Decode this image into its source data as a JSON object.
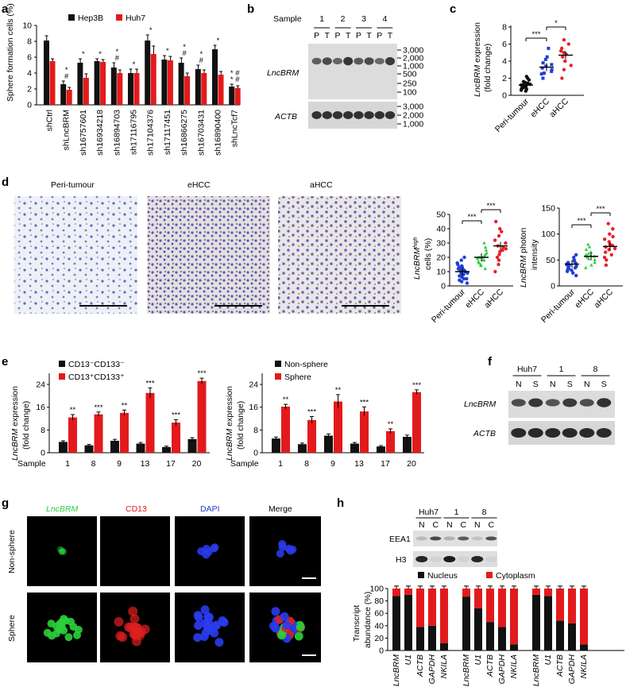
{
  "panels": {
    "a": "a",
    "b": "b",
    "c": "c",
    "d": "d",
    "e": "e",
    "f": "f",
    "g": "g",
    "h": "h"
  },
  "colors": {
    "black": "#111111",
    "red": "#e31a1c",
    "blue": "#1f3fd6",
    "green": "#2ecc40",
    "redDot": "#e8202a"
  },
  "panel_a": {
    "ylabel": "Sphere formation cells (%)",
    "legend": [
      "Hep3B",
      "Huh7"
    ],
    "y_ticks": [
      "0",
      "2",
      "4",
      "6",
      "8",
      "10"
    ],
    "x_labels": [
      "shCtrl",
      "shLncBRM",
      "sh16757601",
      "sh16934218",
      "sh16894703",
      "sh17116795",
      "sh17104376",
      "sh17117451",
      "sh16866275",
      "sh16703431",
      "sh16890400",
      "shLncTcf7"
    ],
    "sig_marks": [
      "*\n#",
      "*\n#",
      "*",
      "*",
      "*\n#",
      "*",
      "*",
      "*",
      "*\n#",
      "*\n#",
      "*",
      "* #\n* #"
    ]
  },
  "panel_b": {
    "sample_label": "Sample",
    "samples": [
      "1",
      "2",
      "3",
      "4"
    ],
    "pt": [
      "P",
      "T",
      "P",
      "T",
      "P",
      "T",
      "P",
      "T"
    ],
    "rows": [
      "LncBRM",
      "ACTB"
    ],
    "ladder_top": [
      "3,000",
      "2,000",
      "1,000",
      "500",
      "250",
      "100"
    ],
    "ladder_bottom": [
      "3,000",
      "2,000",
      "1,000"
    ]
  },
  "panel_c": {
    "ylabel": "LncBRM expression\n(fold change)",
    "y_ticks": [
      "0",
      "2",
      "4",
      "6",
      "8"
    ],
    "groups": [
      "Peri-tumour",
      "eHCC",
      "aHCC"
    ],
    "sig": [
      "***",
      "*"
    ]
  },
  "panel_d": {
    "images": [
      "Peri-tumour",
      "eHCC",
      "aHCC"
    ],
    "chart1_ylabel": "LncBRM high cells (%)",
    "chart1_ticks": [
      "0",
      "10",
      "20",
      "30",
      "40",
      "50"
    ],
    "chart2_ylabel": "LncBRM photon intensity",
    "chart2_ticks": [
      "0",
      "50",
      "100",
      "150"
    ],
    "groups": [
      "Peri-tumour",
      "eHCC",
      "aHCC"
    ],
    "sig": [
      "***",
      "***"
    ]
  },
  "panel_e": {
    "left_legend": [
      "CD13⁻CD133⁻",
      "CD13⁺CD133⁺"
    ],
    "right_legend": [
      "Non-sphere",
      "Sphere"
    ],
    "ylabel": "LncBRM expression\n(fold change)",
    "y_ticks": [
      "0",
      "8",
      "16",
      "24"
    ],
    "sample_label": "Sample",
    "samples": [
      "1",
      "8",
      "9",
      "13",
      "17",
      "20"
    ],
    "left_sig": [
      "**",
      "***",
      "**",
      "***",
      "***",
      "***"
    ],
    "right_sig": [
      "**",
      "***",
      "**",
      "***",
      "**",
      "***"
    ]
  },
  "panel_f": {
    "groups": [
      "Huh7",
      "1",
      "8"
    ],
    "lanes": [
      "N",
      "S",
      "N",
      "S",
      "N",
      "S"
    ],
    "rows": [
      "LncBRM",
      "ACTB"
    ]
  },
  "panel_g": {
    "cols": [
      "LncBRM",
      "CD13",
      "DAPI",
      "Merge"
    ],
    "rows": [
      "Non-sphere",
      "Sphere"
    ]
  },
  "panel_h": {
    "groups": [
      "Huh7",
      "1",
      "8"
    ],
    "lanes": [
      "N",
      "C",
      "N",
      "C",
      "N",
      "C"
    ],
    "rows": [
      "EEA1",
      "H3"
    ],
    "legend": [
      "Nucleus",
      "Cytoplasm"
    ],
    "ylabel": "Transcript abundance (%)",
    "y_ticks": [
      "0",
      "20",
      "40",
      "60",
      "80",
      "100"
    ],
    "x_labels": [
      "LncBRM",
      "U1",
      "ACTB",
      "GAPDH",
      "NKILA"
    ]
  },
  "chart_data": [
    {
      "type": "bar",
      "title": "",
      "ylabel": "Sphere formation cells (%)",
      "ylim": [
        0,
        10
      ],
      "categories": [
        "shCtrl",
        "shLncBRM",
        "sh16757601",
        "sh16934218",
        "sh16894703",
        "sh17116795",
        "sh17104376",
        "sh17117451",
        "sh16866275",
        "sh16703431",
        "sh16890400",
        "shLncTcf7"
      ],
      "series": [
        {
          "name": "Hep3B",
          "values": [
            8.1,
            2.6,
            5.3,
            5.5,
            4.7,
            4.0,
            8.1,
            5.7,
            5.3,
            4.5,
            7.0,
            2.3
          ],
          "errors": [
            0.6,
            0.4,
            0.5,
            0.3,
            0.6,
            0.5,
            0.7,
            0.5,
            0.6,
            0.5,
            0.5,
            0.3
          ]
        },
        {
          "name": "Huh7",
          "values": [
            5.5,
            1.9,
            3.4,
            5.4,
            4.0,
            4.0,
            6.4,
            5.6,
            3.6,
            4.0,
            3.8,
            2.1
          ],
          "errors": [
            0.3,
            0.3,
            0.5,
            0.3,
            0.4,
            0.5,
            1.0,
            0.5,
            0.4,
            0.4,
            0.4,
            0.3
          ]
        }
      ]
    },
    {
      "type": "scatter",
      "ylabel": "LncBRM expression (fold change)",
      "ylim": [
        0,
        8
      ],
      "categories": [
        "Peri-tumour",
        "eHCC",
        "aHCC"
      ],
      "series": [
        {
          "name": "Peri-tumour",
          "values": [
            0.5,
            0.7,
            0.8,
            0.9,
            1.0,
            1.1,
            1.2,
            1.3,
            1.4,
            1.5,
            1.6,
            1.8,
            2.0,
            0.6,
            0.9,
            1.2,
            1.4,
            0.8,
            2.2,
            1.0
          ],
          "mean": 1.2
        },
        {
          "name": "eHCC",
          "values": [
            2.0,
            2.5,
            2.8,
            3.0,
            3.2,
            3.4,
            3.6,
            3.8,
            4.2,
            4.5,
            5.5,
            2.6
          ],
          "mean": 3.3
        },
        {
          "name": "aHCC",
          "values": [
            2.0,
            3.5,
            4.0,
            4.5,
            4.8,
            5.0,
            5.5,
            6.0,
            6.5,
            3.0,
            5.2
          ],
          "mean": 4.7
        }
      ]
    },
    {
      "type": "scatter",
      "ylabel": "LncBRM high cells (%)",
      "ylim": [
        0,
        50
      ],
      "categories": [
        "Peri-tumour",
        "eHCC",
        "aHCC"
      ],
      "series": [
        {
          "name": "Peri-tumour",
          "values": [
            2,
            4,
            5,
            6,
            7,
            8,
            9,
            10,
            11,
            12,
            13,
            14,
            15,
            16,
            18,
            20,
            5,
            9,
            11,
            7,
            13,
            3
          ],
          "mean": 10
        },
        {
          "name": "eHCC",
          "values": [
            12,
            14,
            15,
            16,
            17,
            18,
            19,
            20,
            21,
            22,
            23,
            25,
            27,
            30,
            18,
            20
          ],
          "mean": 20
        },
        {
          "name": "aHCC",
          "values": [
            10,
            15,
            18,
            20,
            22,
            25,
            27,
            28,
            30,
            32,
            35,
            38,
            40,
            45,
            26,
            24
          ],
          "mean": 28
        }
      ]
    },
    {
      "type": "scatter",
      "ylabel": "LncBRM photon intensity",
      "ylim": [
        0,
        150
      ],
      "categories": [
        "Peri-tumour",
        "eHCC",
        "aHCC"
      ],
      "series": [
        {
          "name": "Peri-tumour",
          "values": [
            20,
            25,
            30,
            32,
            35,
            38,
            40,
            42,
            45,
            48,
            50,
            55,
            60,
            33,
            44,
            37,
            41,
            28
          ],
          "mean": 42
        },
        {
          "name": "eHCC",
          "values": [
            35,
            40,
            45,
            50,
            55,
            58,
            60,
            62,
            65,
            70,
            75,
            80,
            52,
            57
          ],
          "mean": 57
        },
        {
          "name": "aHCC",
          "values": [
            40,
            50,
            55,
            60,
            65,
            70,
            75,
            80,
            85,
            90,
            95,
            100,
            110,
            120,
            72,
            78
          ],
          "mean": 76
        }
      ]
    },
    {
      "type": "bar",
      "ylabel": "LncBRM expression (fold change)",
      "ylim": [
        0,
        24
      ],
      "categories": [
        "1",
        "8",
        "9",
        "13",
        "17",
        "20"
      ],
      "series": [
        {
          "name": "CD13⁻CD133⁻",
          "values": [
            3.8,
            2.6,
            4.2,
            3.2,
            2.0,
            4.8
          ],
          "errors": [
            0.4,
            0.3,
            0.5,
            0.4,
            0.3,
            0.5
          ]
        },
        {
          "name": "CD13⁺CD133⁺",
          "values": [
            12.4,
            13.5,
            14.0,
            21.0,
            10.6,
            25.2
          ],
          "errors": [
            1.0,
            0.8,
            1.0,
            1.8,
            1.0,
            1.0
          ]
        }
      ]
    },
    {
      "type": "bar",
      "ylabel": "LncBRM expression (fold change)",
      "ylim": [
        0,
        24
      ],
      "categories": [
        "1",
        "8",
        "9",
        "13",
        "17",
        "20"
      ],
      "series": [
        {
          "name": "Non-sphere",
          "values": [
            5.0,
            3.0,
            6.0,
            3.2,
            2.2,
            5.6
          ],
          "errors": [
            0.5,
            0.4,
            0.6,
            0.4,
            0.3,
            0.6
          ]
        },
        {
          "name": "Sphere",
          "values": [
            16.2,
            11.5,
            18.0,
            14.5,
            7.6,
            21.3
          ],
          "errors": [
            0.8,
            1.2,
            2.4,
            1.6,
            0.8,
            0.8
          ]
        }
      ]
    },
    {
      "type": "bar",
      "ylabel": "Transcript abundance (%)",
      "ylim": [
        0,
        100
      ],
      "categories": [
        "LncBRM",
        "U1",
        "ACTB",
        "GAPDH",
        "NKILA",
        "LncBRM",
        "U1",
        "ACTB",
        "GAPDH",
        "NKILA",
        "LncBRM",
        "U1",
        "ACTB",
        "GAPDH",
        "NKILA"
      ],
      "series": [
        {
          "name": "Nucleus",
          "values": [
            88,
            90,
            38,
            40,
            12,
            87,
            68,
            46,
            38,
            10,
            90,
            88,
            48,
            44,
            10
          ]
        },
        {
          "name": "Cytoplasm",
          "values": [
            12,
            10,
            62,
            60,
            88,
            13,
            32,
            54,
            62,
            90,
            10,
            12,
            52,
            56,
            90
          ]
        }
      ]
    }
  ]
}
